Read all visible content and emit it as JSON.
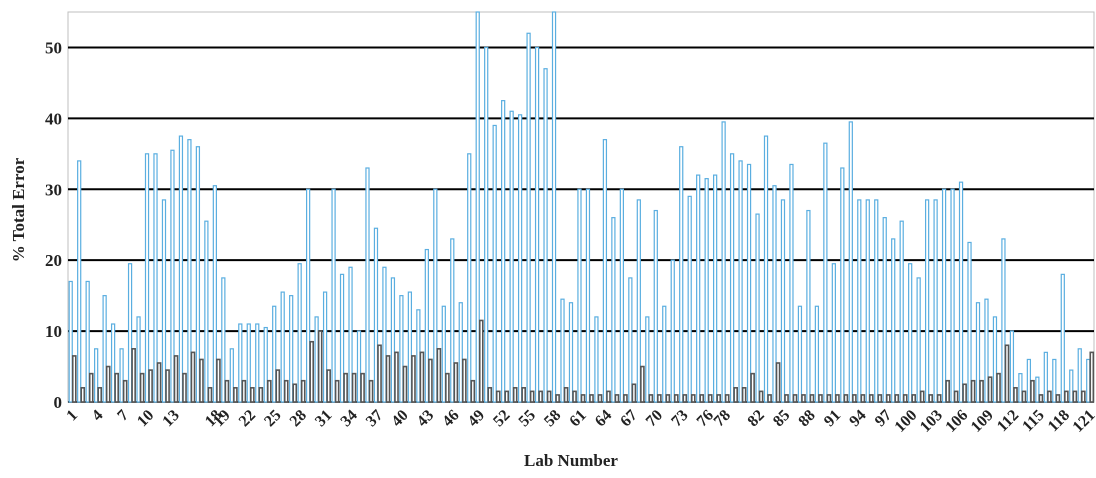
{
  "chart_data": {
    "type": "bar",
    "title": "",
    "xlabel": "Lab Number",
    "ylabel": "% Total Error",
    "ylim": [
      0,
      55
    ],
    "yticks": [
      0,
      10,
      20,
      30,
      40,
      50
    ],
    "grid": "horizontal",
    "x_tick_labels": [
      "1",
      "4",
      "7",
      "10",
      "13",
      "18",
      "19",
      "22",
      "25",
      "28",
      "31",
      "34",
      "37",
      "40",
      "43",
      "46",
      "49",
      "52",
      "55",
      "58",
      "61",
      "64",
      "67",
      "70",
      "73",
      "76",
      "78",
      "82",
      "85",
      "88",
      "91",
      "94",
      "97",
      "100",
      "103",
      "106",
      "109",
      "112",
      "115",
      "118",
      "121"
    ],
    "series": [
      {
        "color": "#5aaee0",
        "values": [
          17,
          34,
          17,
          7.5,
          15,
          11,
          7.5,
          19.5,
          12,
          35,
          35,
          28.5,
          35.5,
          37.5,
          37,
          36,
          25.5,
          30.5,
          17.5,
          7.5,
          11,
          11,
          11,
          10.5,
          13.5,
          15.5,
          15,
          19.5,
          30,
          12,
          15.5,
          30,
          18,
          19,
          10,
          33,
          24.5,
          19,
          17.5,
          15,
          15.5,
          13,
          21.5,
          30,
          13.5,
          23,
          14,
          35,
          55,
          50,
          39,
          42.5,
          41,
          40.5,
          52,
          50,
          47,
          55,
          14.5,
          14,
          30,
          30,
          12,
          37,
          26,
          30,
          17.5,
          28.5,
          12,
          27,
          13.5,
          20,
          36,
          29,
          32,
          31.5,
          32,
          39.5,
          35,
          34,
          33.5,
          26.5,
          37.5,
          30.5,
          28.5,
          33.5,
          13.5,
          27,
          13.5,
          36.5,
          19.5,
          33,
          39.5,
          28.5,
          28.5,
          28.5,
          26,
          23,
          25.5,
          19.5,
          17.5,
          28.5,
          28.5,
          30,
          30,
          31,
          22.5,
          14,
          14.5,
          12,
          23,
          10,
          4,
          6,
          3.5,
          7,
          6,
          18,
          4.5,
          7.5,
          6
        ]
      },
      {
        "color": "#555555",
        "values": [
          6.5,
          2,
          4,
          2,
          5,
          4,
          3,
          7.5,
          4,
          4.5,
          5.5,
          4.5,
          6.5,
          4,
          7,
          6,
          2,
          6,
          3,
          2,
          3,
          2,
          2,
          3,
          4.5,
          3,
          2.5,
          3,
          8.5,
          10,
          4.5,
          3,
          4,
          4,
          4,
          3,
          8,
          6.5,
          7,
          5,
          6.5,
          7,
          6,
          7.5,
          4,
          5.5,
          6,
          3,
          11.5,
          2,
          1.5,
          1.5,
          2,
          2,
          1.5,
          1.5,
          1.5,
          1,
          2,
          1.5,
          1,
          1,
          1,
          1.5,
          1,
          1,
          2.5,
          5,
          1,
          1,
          1,
          1,
          1,
          1,
          1,
          1,
          1,
          1,
          2,
          2,
          4,
          1.5,
          1,
          5.5,
          1,
          1,
          1,
          1,
          1,
          1,
          1,
          1,
          1,
          1,
          1,
          1,
          1,
          1,
          1,
          1,
          1.5,
          1,
          1,
          3,
          1.5,
          2.5,
          3,
          3,
          3.5,
          4,
          8,
          2,
          1.5,
          3,
          1,
          1.5,
          1,
          1.5,
          1.5,
          1.5,
          7
        ]
      }
    ]
  }
}
